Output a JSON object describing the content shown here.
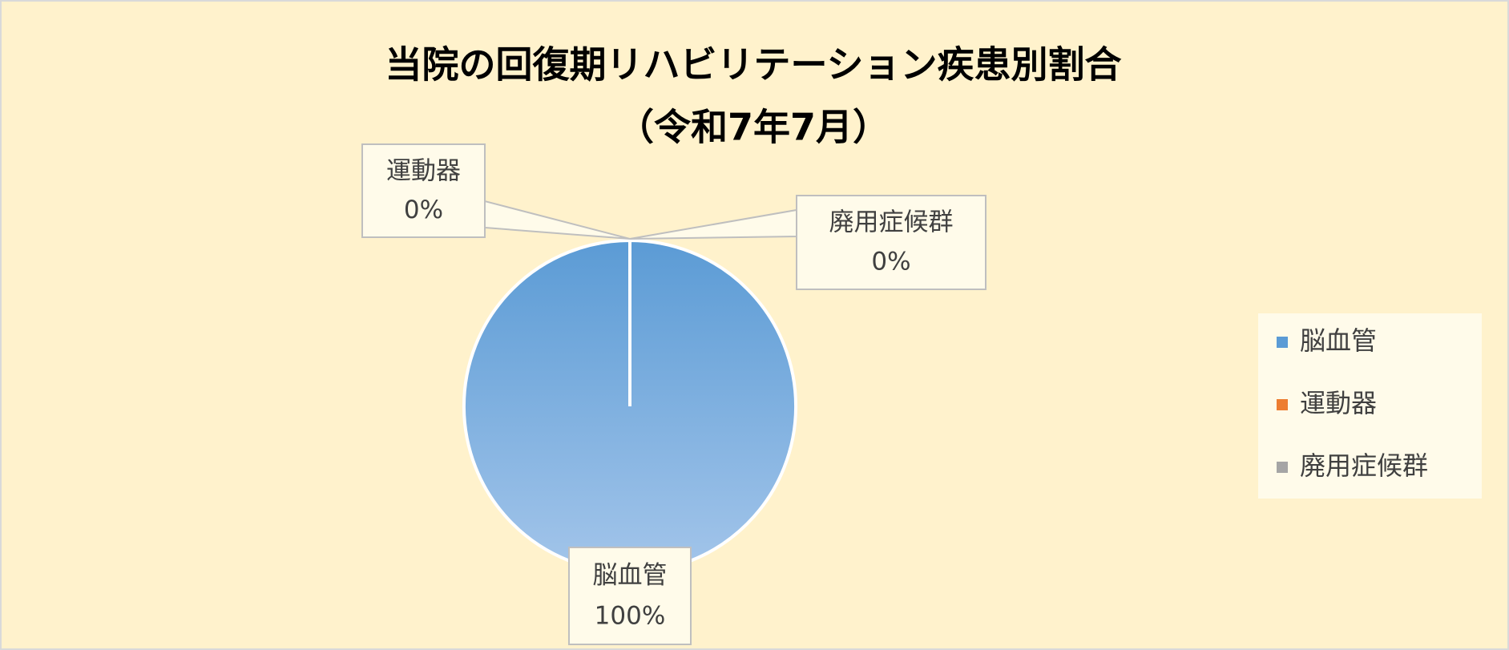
{
  "chart_data": {
    "type": "pie",
    "title": "当院の回復期リハビリテーション疾患別割合",
    "subtitle": "（令和7年7月）",
    "categories": [
      "脳血管",
      "運動器",
      "廃用症候群"
    ],
    "values": [
      100,
      0,
      0
    ],
    "value_labels": [
      "100%",
      "0%",
      "0%"
    ],
    "colors": [
      "#5b9bd5",
      "#ed7d31",
      "#a5a5a5"
    ],
    "legend": "right"
  }
}
